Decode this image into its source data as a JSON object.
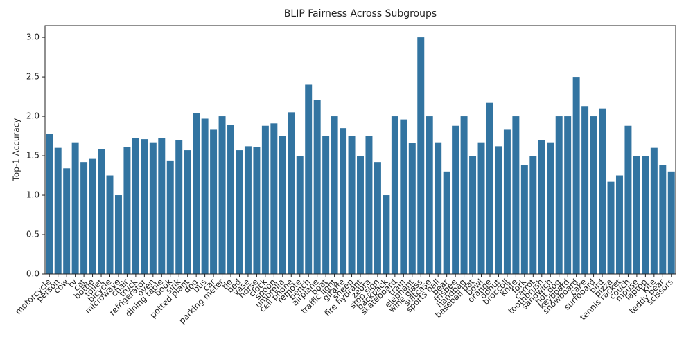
{
  "chart_data": {
    "type": "bar",
    "title": "BLIP Fairness Across Subgroups",
    "ylabel": "Top-1 Accuracy",
    "categories": [
      "motorcycle",
      "person",
      "cow",
      "tv",
      "cat",
      "bottle",
      "toilet",
      "bicycle",
      "microwave",
      "chair",
      "truck",
      "refrigerator",
      "oven",
      "dining table",
      "book",
      "sink",
      "potted plant",
      "dog",
      "bus",
      "car",
      "parking meter",
      "tie",
      "bed",
      "vase",
      "horse",
      "clock",
      "spoon",
      "umbrella",
      "cell phone",
      "remote",
      "bench",
      "airplane",
      "boat",
      "traffic light",
      "giraffe",
      "sheep",
      "fire hydrant",
      "zebra",
      "stop sign",
      "backpack",
      "skateboard",
      "train",
      "elephant",
      "wine glass",
      "suitcase",
      "sports ball",
      "bear",
      "frisbee",
      "handbag",
      "baseball bat",
      "bowl",
      "orange",
      "donut",
      "broccoli",
      "knife",
      "fork",
      "carrot",
      "toothbrush",
      "sandwich",
      "hot dog",
      "keyboard",
      "snowboard",
      "cake",
      "surfboard",
      "bird",
      "pizza",
      "tennis racket",
      "couch",
      "mouse",
      "laptop",
      "kite",
      "teddy bear",
      "scissors"
    ],
    "values": [
      1.78,
      1.6,
      1.34,
      1.67,
      1.42,
      1.46,
      1.58,
      1.25,
      1.0,
      1.61,
      1.72,
      1.71,
      1.67,
      1.72,
      1.44,
      1.7,
      1.57,
      2.04,
      1.97,
      1.83,
      2.0,
      1.89,
      1.57,
      1.62,
      1.61,
      1.88,
      1.91,
      1.75,
      2.05,
      1.5,
      2.4,
      2.21,
      1.75,
      2.0,
      1.85,
      1.75,
      1.5,
      1.75,
      1.42,
      1.0,
      2.0,
      1.96,
      1.66,
      3.0,
      2.0,
      1.67,
      1.3,
      1.88,
      2.0,
      1.5,
      1.67,
      2.17,
      1.62,
      1.83,
      2.0,
      1.38,
      1.5,
      1.7,
      1.67,
      2.0,
      2.0,
      2.5,
      2.13,
      2.0,
      2.1,
      1.17,
      1.25,
      1.88,
      1.5,
      1.5,
      1.6,
      1.38,
      1.3
    ],
    "color": "#3274a1",
    "ylim": [
      0,
      3.15
    ],
    "yticks": [
      {
        "value": 0,
        "label": "0.0"
      },
      {
        "value": 0.5,
        "label": "0.5"
      },
      {
        "value": 1,
        "label": "1.0"
      },
      {
        "value": 1.5,
        "label": "1.5"
      },
      {
        "value": 2,
        "label": "2.0"
      },
      {
        "value": 2.5,
        "label": "2.5"
      },
      {
        "value": 3,
        "label": "3.0"
      }
    ],
    "grid": false
  }
}
